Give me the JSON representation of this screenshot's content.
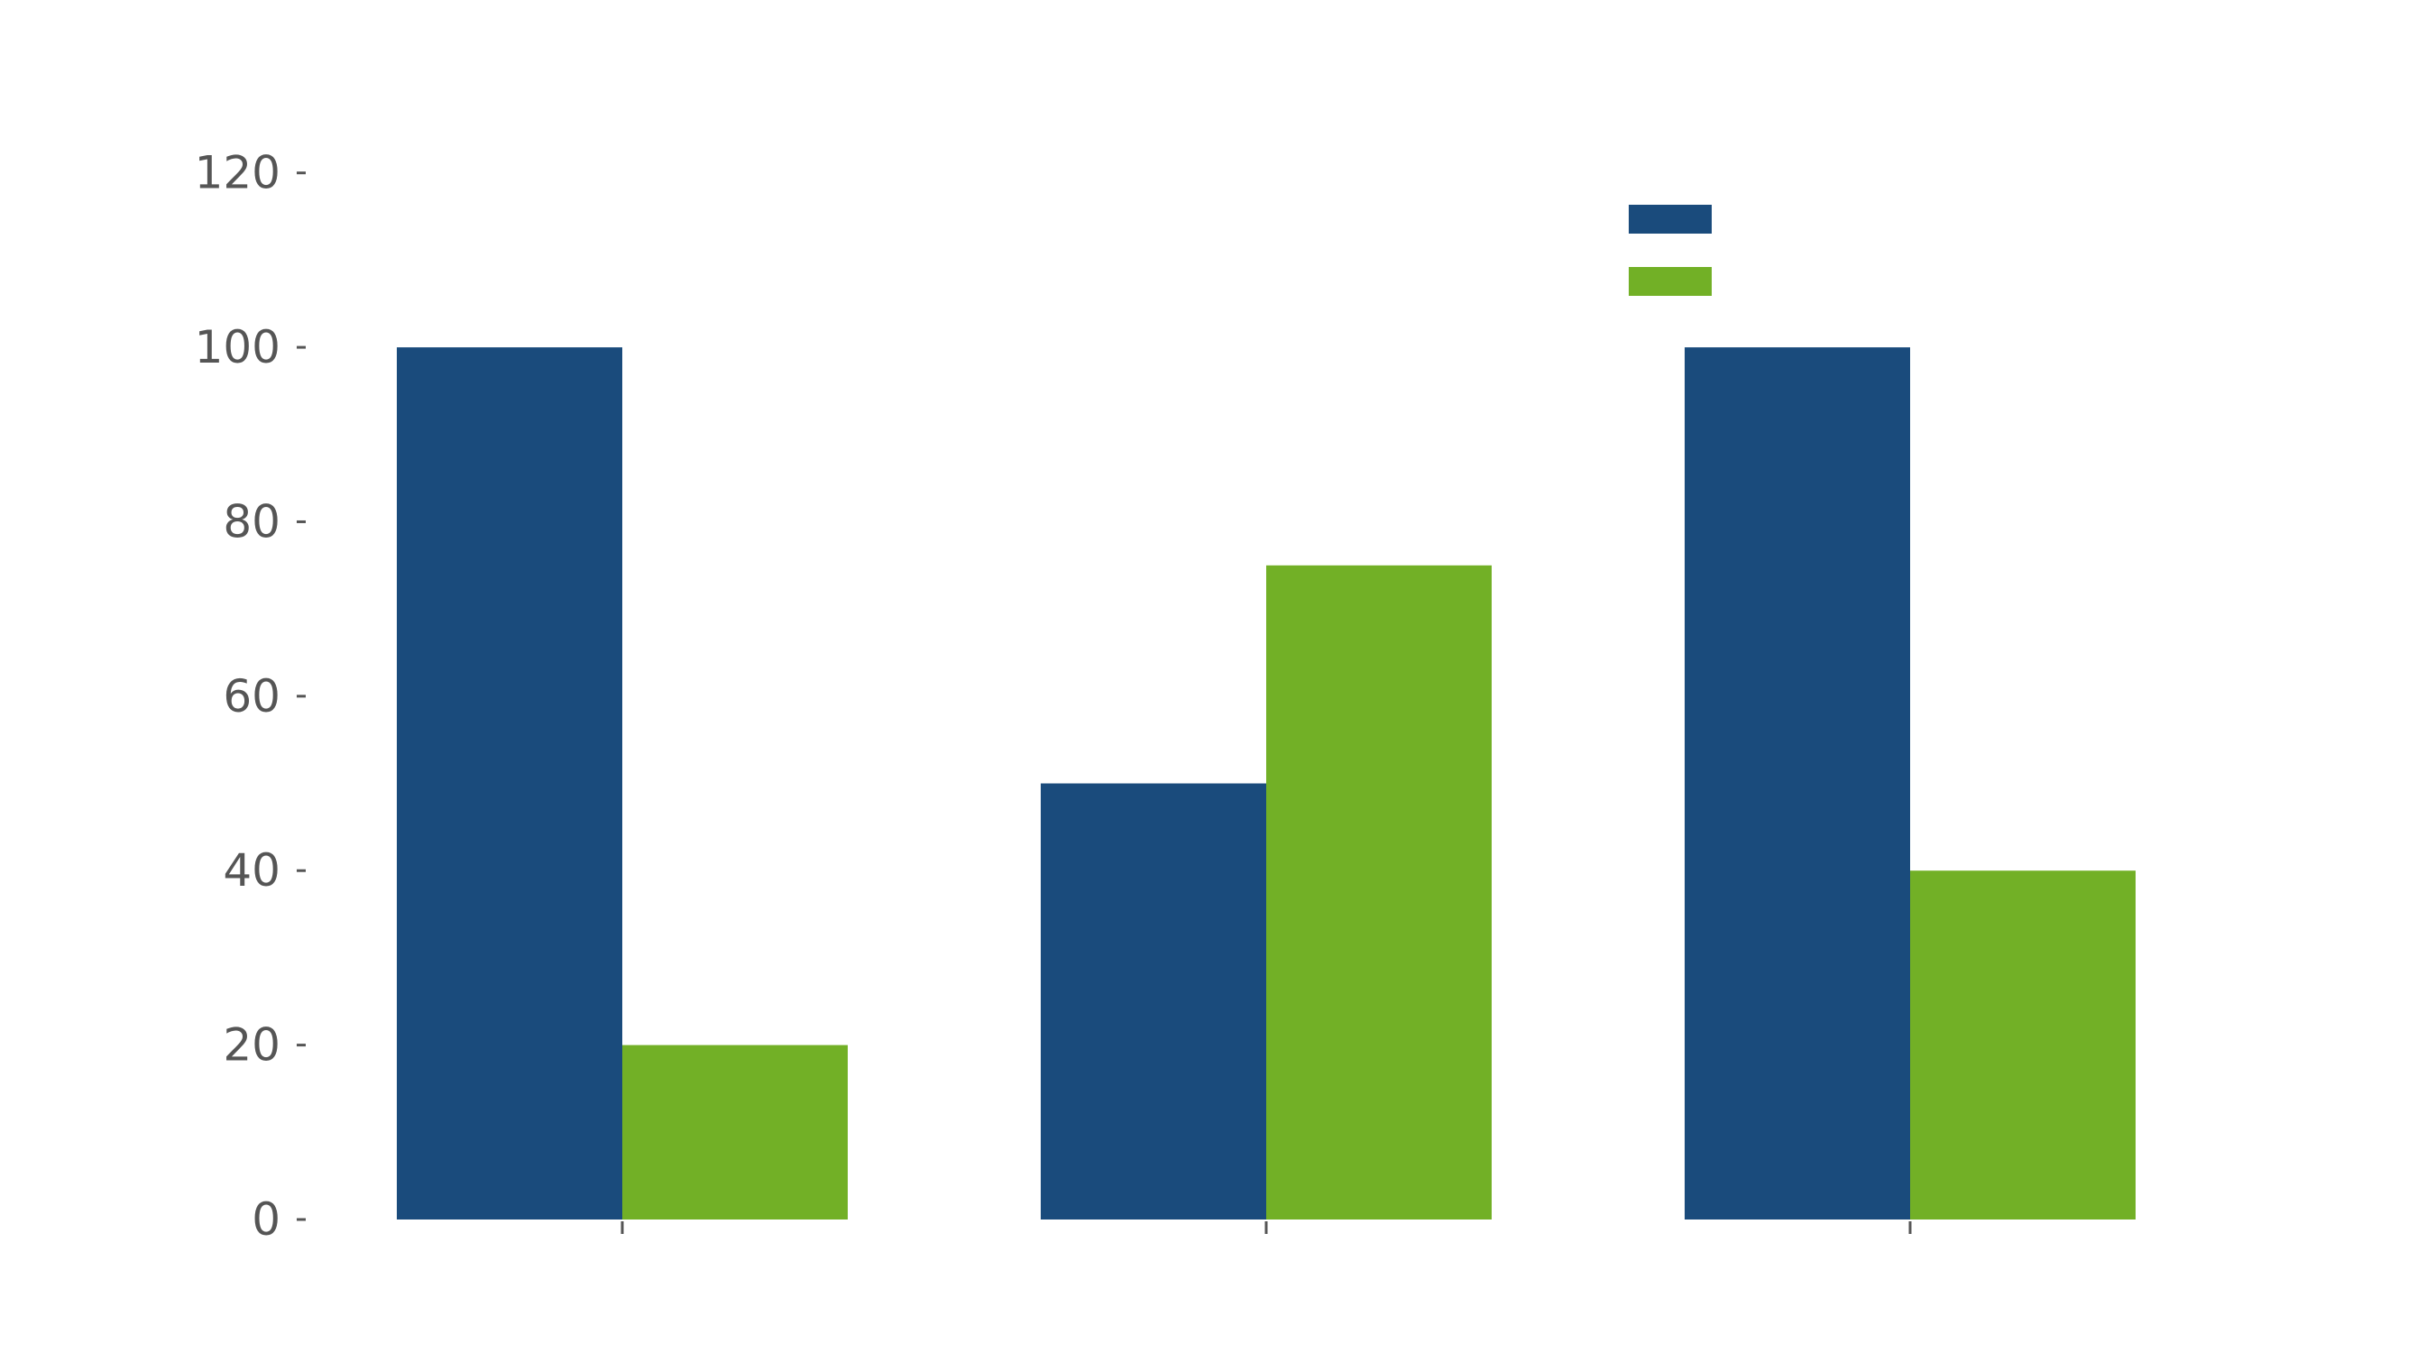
{
  "chart_data": {
    "type": "bar",
    "title": "",
    "xlabel": "",
    "ylabel": "",
    "categories": [
      "",
      "",
      ""
    ],
    "series": [
      {
        "color": "#1a4b7c",
        "values": [
          100,
          50,
          100
        ]
      },
      {
        "color": "#72b026",
        "values": [
          20,
          75,
          40
        ]
      }
    ],
    "ylim": [
      0,
      130
    ],
    "yticks": [
      0,
      20,
      40,
      60,
      80,
      100,
      120
    ],
    "grid": false,
    "legend": {
      "position": "top-right"
    },
    "tick_color": "#555555"
  }
}
